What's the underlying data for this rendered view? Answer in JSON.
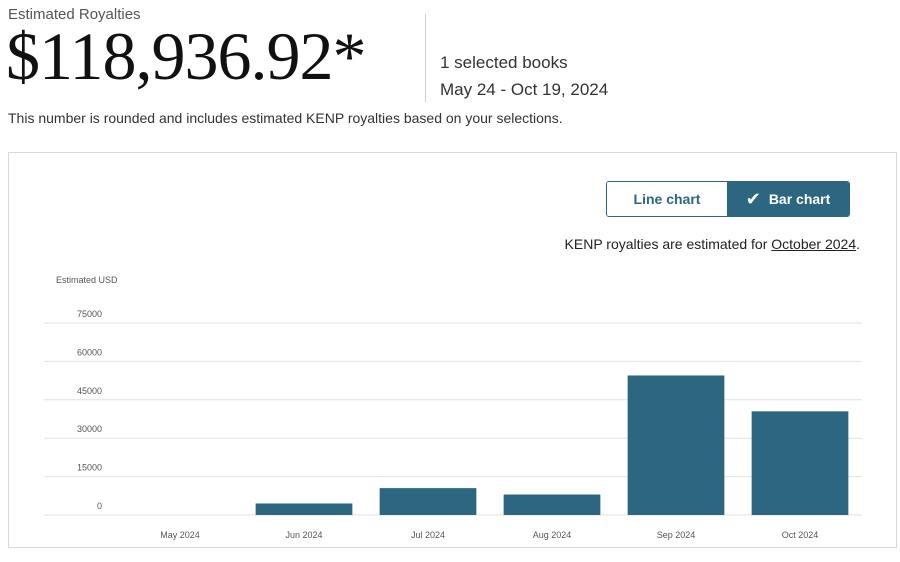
{
  "header": {
    "label": "Estimated Royalties",
    "amount": "$118,936.92*",
    "selected_books": "1 selected books",
    "date_range": "May 24 - Oct 19, 2024",
    "note": "This number is rounded and includes estimated KENP royalties based on your selections."
  },
  "toggle": {
    "line_label": "Line chart",
    "bar_label": "Bar chart",
    "selected": "bar"
  },
  "kenp_note": {
    "prefix": "KENP royalties are estimated for ",
    "link": "October 2024",
    "suffix": "."
  },
  "colors": {
    "bar": "#2d6680",
    "gridline": "#e2e2e2"
  },
  "chart_data": {
    "type": "bar",
    "ylabel": "Estimated USD",
    "categories": [
      "May 2024",
      "Jun 2024",
      "Jul 2024",
      "Aug 2024",
      "Sep 2024",
      "Oct 2024"
    ],
    "values": [
      0,
      4500,
      10500,
      8000,
      54500,
      40500
    ],
    "ylim": [
      0,
      75000
    ],
    "yticks": [
      "0",
      "15000",
      "30000",
      "45000",
      "60000",
      "75000"
    ],
    "grid": true
  }
}
